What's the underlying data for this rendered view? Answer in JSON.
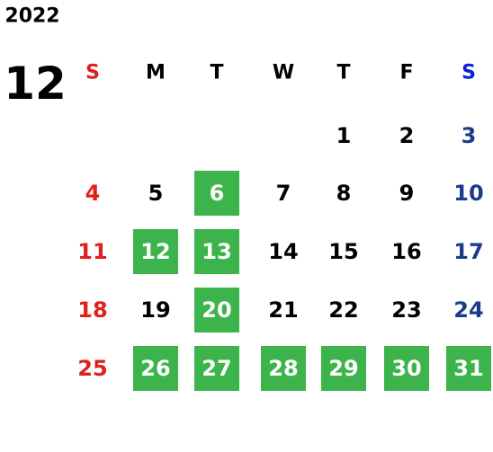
{
  "calendar": {
    "year": "2022",
    "month": "12",
    "weekdays": [
      "S",
      "M",
      "T",
      "W",
      "T",
      "F",
      "S"
    ],
    "weeks": [
      [
        null,
        null,
        null,
        null,
        {
          "day": 1,
          "highlight": false
        },
        {
          "day": 2,
          "highlight": false
        },
        {
          "day": 3,
          "highlight": false
        }
      ],
      [
        {
          "day": 4,
          "highlight": false
        },
        {
          "day": 5,
          "highlight": false
        },
        {
          "day": 6,
          "highlight": true
        },
        {
          "day": 7,
          "highlight": false
        },
        {
          "day": 8,
          "highlight": false
        },
        {
          "day": 9,
          "highlight": false
        },
        {
          "day": 10,
          "highlight": false
        }
      ],
      [
        {
          "day": 11,
          "highlight": false
        },
        {
          "day": 12,
          "highlight": true
        },
        {
          "day": 13,
          "highlight": true
        },
        {
          "day": 14,
          "highlight": false
        },
        {
          "day": 15,
          "highlight": false
        },
        {
          "day": 16,
          "highlight": false
        },
        {
          "day": 17,
          "highlight": false
        }
      ],
      [
        {
          "day": 18,
          "highlight": false
        },
        {
          "day": 19,
          "highlight": false
        },
        {
          "day": 20,
          "highlight": true
        },
        {
          "day": 21,
          "highlight": false
        },
        {
          "day": 22,
          "highlight": false
        },
        {
          "day": 23,
          "highlight": false
        },
        {
          "day": 24,
          "highlight": false
        }
      ],
      [
        {
          "day": 25,
          "highlight": false
        },
        {
          "day": 26,
          "highlight": true
        },
        {
          "day": 27,
          "highlight": true
        },
        {
          "day": 28,
          "highlight": true
        },
        {
          "day": 29,
          "highlight": true
        },
        {
          "day": 30,
          "highlight": true
        },
        {
          "day": 31,
          "highlight": true
        }
      ]
    ]
  }
}
